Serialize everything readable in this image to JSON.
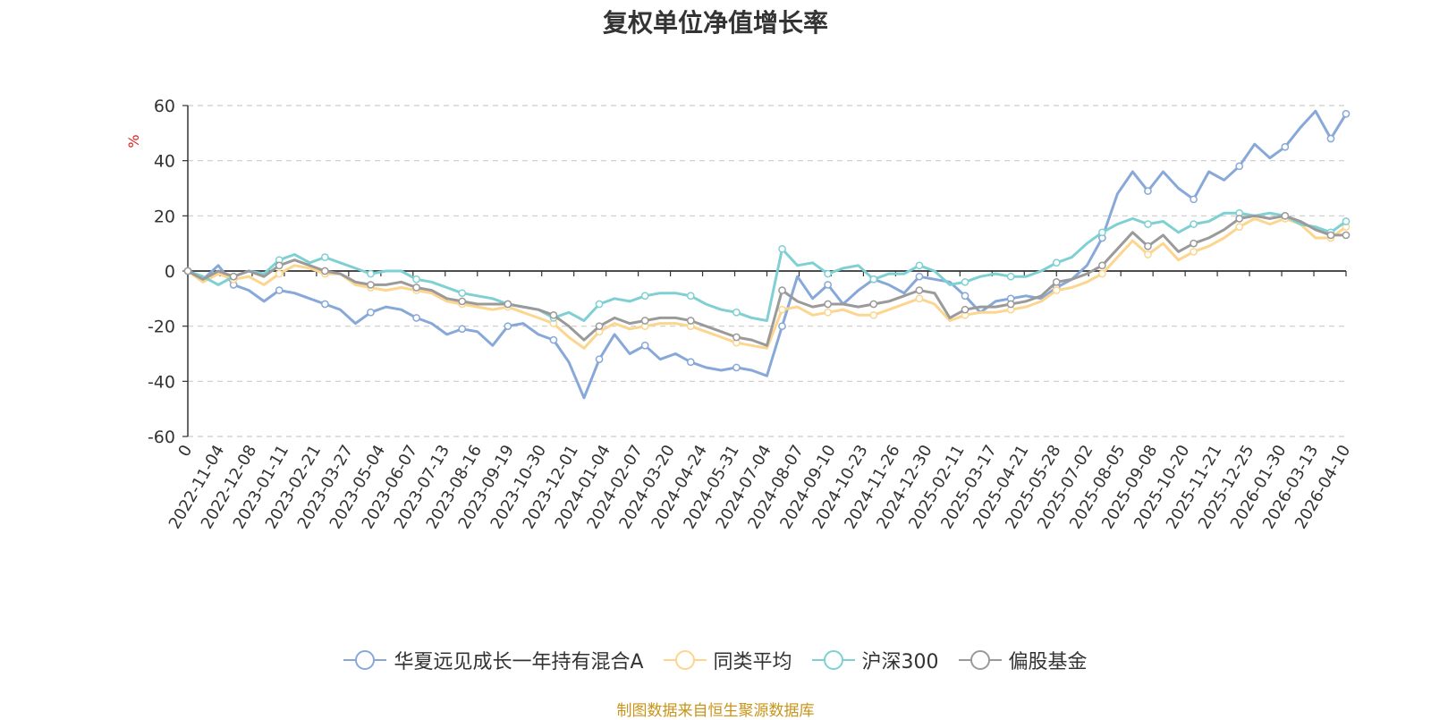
{
  "chart_data": {
    "type": "line",
    "title": "复权单位净值增长率",
    "ylabel": "%",
    "ylim": [
      -60,
      60
    ],
    "yticks": [
      60,
      40,
      20,
      0,
      -20,
      -40,
      -60
    ],
    "xticks": [
      "0",
      "2022-11-04",
      "2022-12-08",
      "2023-01-11",
      "2023-02-21",
      "2023-03-27",
      "2023-05-04",
      "2023-06-07",
      "2023-07-13",
      "2023-08-16",
      "2023-09-19",
      "2023-10-30",
      "2023-12-01",
      "2024-01-04",
      "2024-02-07",
      "2024-03-20",
      "2024-04-24",
      "2024-05-31",
      "2024-07-04",
      "2024-08-07",
      "2024-09-10",
      "2024-10-23",
      "2024-11-26",
      "2024-12-30",
      "2025-02-11",
      "2025-03-17",
      "2025-04-21",
      "2025-05-28",
      "2025-07-02",
      "2025-08-05",
      "2025-09-08",
      "2025-10-20",
      "2025-11-21",
      "2025-12-25",
      "2026-01-30",
      "2026-03-13",
      "2026-04-10"
    ],
    "grid": true,
    "legend_position": "bottom",
    "series": [
      {
        "name": "华夏远见成长一年持有混合A",
        "color": "#87a8d8",
        "values": [
          0,
          -3,
          2,
          -5,
          -7,
          -11,
          -7,
          -8,
          -10,
          -12,
          -14,
          -19,
          -15,
          -13,
          -14,
          -17,
          -19,
          -23,
          -21,
          -22,
          -27,
          -20,
          -19,
          -23,
          -25,
          -33,
          -46,
          -32,
          -23,
          -30,
          -27,
          -32,
          -30,
          -33,
          -35,
          -36,
          -35,
          -36,
          -38,
          -20,
          -2,
          -10,
          -5,
          -12,
          -7,
          -3,
          -5,
          -8,
          -2,
          -3,
          -4,
          -9,
          -15,
          -11,
          -10,
          -9,
          -10,
          -6,
          -3,
          2,
          12,
          28,
          36,
          29,
          36,
          30,
          26,
          36,
          33,
          38,
          46,
          41,
          45,
          52,
          58,
          48,
          57
        ]
      },
      {
        "name": "同类平均",
        "color": "#fcd58f",
        "values": [
          0,
          -4,
          -1,
          -3,
          -2,
          -5,
          -1,
          2,
          1,
          -1,
          -1,
          -5,
          -6,
          -7,
          -6,
          -7,
          -8,
          -11,
          -12,
          -13,
          -14,
          -13,
          -15,
          -17,
          -19,
          -24,
          -28,
          -22,
          -19,
          -21,
          -20,
          -19,
          -19,
          -20,
          -22,
          -24,
          -26,
          -27,
          -28,
          -14,
          -13,
          -16,
          -15,
          -14,
          -16,
          -16,
          -14,
          -12,
          -10,
          -12,
          -18,
          -16,
          -15,
          -15,
          -14,
          -13,
          -11,
          -7,
          -6,
          -4,
          -1,
          5,
          11,
          6,
          10,
          4,
          7,
          9,
          12,
          16,
          19,
          17,
          19,
          17,
          12,
          12,
          16
        ]
      },
      {
        "name": "沪深300",
        "color": "#7fd0d3",
        "values": [
          0,
          -2,
          -5,
          -2,
          0,
          -1,
          4,
          6,
          3,
          5,
          3,
          1,
          -1,
          0,
          0,
          -3,
          -4,
          -6,
          -8,
          -9,
          -10,
          -12,
          -13,
          -14,
          -17,
          -15,
          -18,
          -12,
          -10,
          -11,
          -9,
          -8,
          -8,
          -9,
          -12,
          -14,
          -15,
          -17,
          -18,
          8,
          2,
          3,
          -1,
          1,
          2,
          -3,
          -1,
          -1,
          2,
          0,
          -5,
          -4,
          -2,
          -1,
          -2,
          -2,
          0,
          3,
          5,
          10,
          14,
          17,
          19,
          17,
          18,
          14,
          17,
          18,
          21,
          21,
          20,
          21,
          20,
          17,
          16,
          14,
          18
        ]
      },
      {
        "name": "偏股基金",
        "color": "#9a9a9a",
        "values": [
          0,
          -3,
          0,
          -2,
          0,
          -2,
          2,
          4,
          2,
          0,
          -1,
          -4,
          -5,
          -5,
          -4,
          -6,
          -7,
          -10,
          -11,
          -12,
          -12,
          -12,
          -13,
          -14,
          -16,
          -20,
          -25,
          -20,
          -17,
          -19,
          -18,
          -17,
          -17,
          -18,
          -20,
          -22,
          -24,
          -25,
          -27,
          -7,
          -11,
          -13,
          -12,
          -12,
          -13,
          -12,
          -11,
          -9,
          -7,
          -8,
          -17,
          -14,
          -13,
          -13,
          -12,
          -11,
          -9,
          -4,
          -3,
          -1,
          2,
          8,
          14,
          9,
          13,
          7,
          10,
          12,
          15,
          19,
          20,
          19,
          20,
          18,
          15,
          13,
          13
        ]
      }
    ]
  },
  "source_note": "制图数据来自恒生聚源数据库"
}
